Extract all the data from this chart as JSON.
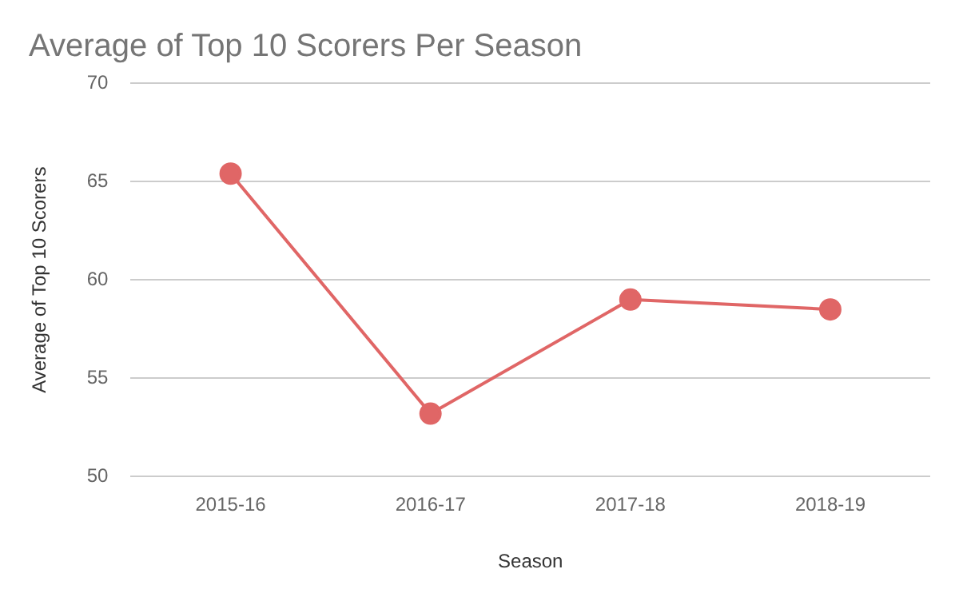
{
  "chart_data": {
    "type": "line",
    "title": "Average of Top 10 Scorers Per Season",
    "xlabel": "Season",
    "ylabel": "Average of Top 10 Scorers",
    "categories": [
      "2015-16",
      "2016-17",
      "2017-18",
      "2018-19"
    ],
    "series": [
      {
        "color": "#e06666",
        "values": [
          65.4,
          53.2,
          59.0,
          58.5
        ]
      }
    ],
    "ylim": [
      50,
      70
    ],
    "yticks": [
      50,
      55,
      60,
      65,
      70
    ],
    "grid": "y",
    "legend": false,
    "marker": "circle",
    "line_style": "solid"
  }
}
